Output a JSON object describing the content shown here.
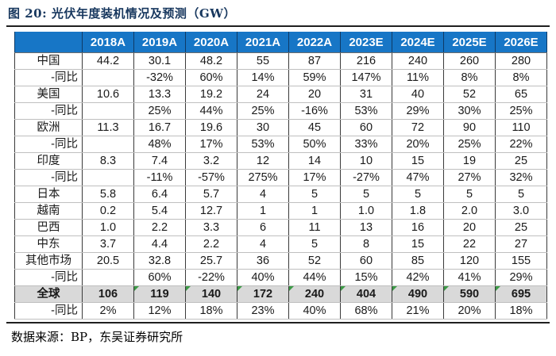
{
  "figure_title": "图 20:  光伏年度装机情况及预测（GW）",
  "source_note": "数据来源：BP，东吴证券研究所",
  "table": {
    "corner_label": "",
    "columns": [
      "2018A",
      "2019A",
      "2020A",
      "2021A",
      "2022A",
      "2023E",
      "2024E",
      "2025E",
      "2026E"
    ],
    "rows": [
      {
        "label": "中国",
        "type": "country",
        "values": [
          "44.2",
          "30.1",
          "48.2",
          "55",
          "87",
          "216",
          "240",
          "260",
          "280"
        ]
      },
      {
        "label": "-同比",
        "type": "yoy",
        "values": [
          "",
          "-32%",
          "60%",
          "14%",
          "59%",
          "147%",
          "11%",
          "8%",
          "8%"
        ]
      },
      {
        "label": "美国",
        "type": "country",
        "values": [
          "10.6",
          "13.3",
          "19.2",
          "24",
          "20",
          "31",
          "40",
          "52",
          "65"
        ]
      },
      {
        "label": "-同比",
        "type": "yoy",
        "values": [
          "",
          "25%",
          "44%",
          "25%",
          "-16%",
          "53%",
          "29%",
          "30%",
          "25%"
        ]
      },
      {
        "label": "欧洲",
        "type": "country",
        "values": [
          "11.3",
          "16.7",
          "19.6",
          "30",
          "45",
          "60",
          "72",
          "90",
          "110"
        ]
      },
      {
        "label": "-同比",
        "type": "yoy",
        "values": [
          "",
          "48%",
          "17%",
          "53%",
          "50%",
          "33%",
          "20%",
          "25%",
          "22%"
        ]
      },
      {
        "label": "印度",
        "type": "country",
        "values": [
          "8.3",
          "7.4",
          "3.2",
          "12",
          "14",
          "10",
          "15",
          "19",
          "25"
        ]
      },
      {
        "label": "-同比",
        "type": "yoy",
        "values": [
          "",
          "-11%",
          "-57%",
          "275%",
          "17%",
          "-27%",
          "47%",
          "27%",
          "32%"
        ]
      },
      {
        "label": "日本",
        "type": "country",
        "values": [
          "5.8",
          "6.4",
          "5.7",
          "4",
          "5",
          "5",
          "5",
          "5",
          "5"
        ]
      },
      {
        "label": "越南",
        "type": "country",
        "values": [
          "0.2",
          "5.4",
          "12.7",
          "1",
          "1",
          "1.0",
          "1.8",
          "2.0",
          "3.0"
        ]
      },
      {
        "label": "巴西",
        "type": "country",
        "values": [
          "1.0",
          "2.2",
          "3.3",
          "6",
          "11",
          "13",
          "16",
          "20",
          "25"
        ]
      },
      {
        "label": "中东",
        "type": "country",
        "values": [
          "3.7",
          "4.4",
          "2.2",
          "4",
          "5",
          "8",
          "15",
          "22",
          "27"
        ]
      },
      {
        "label": "其他市场",
        "type": "country",
        "values": [
          "20.5",
          "32.8",
          "25.7",
          "36",
          "52",
          "60",
          "85",
          "120",
          "155"
        ]
      },
      {
        "label": "-同比",
        "type": "yoy",
        "values": [
          "",
          "60%",
          "-22%",
          "40%",
          "44%",
          "15%",
          "42%",
          "41%",
          "29%"
        ]
      },
      {
        "label": "全球",
        "type": "total",
        "values": [
          "106",
          "119",
          "140",
          "172",
          "240",
          "404",
          "490",
          "590",
          "695"
        ],
        "triangle_columns": [
          1,
          2,
          3,
          4,
          5,
          6,
          7,
          8
        ]
      },
      {
        "label": "-同比",
        "type": "yoy",
        "values": [
          "2%",
          "12%",
          "18%",
          "23%",
          "40%",
          "68%",
          "21%",
          "20%",
          "18%"
        ]
      }
    ]
  },
  "colors": {
    "header_bg": "#1776C6",
    "header_separator": "#0E3A66",
    "header_text": "#FFFFFF",
    "total_row_bg": "#D9D9D9",
    "formula_triangle_green": "#3C9A46",
    "title_navy": "#17375E",
    "rule_dark": "#1F1F1F",
    "grid_vertical": "#3A3A3A",
    "grid_horizontal": "#BFBFBF"
  }
}
